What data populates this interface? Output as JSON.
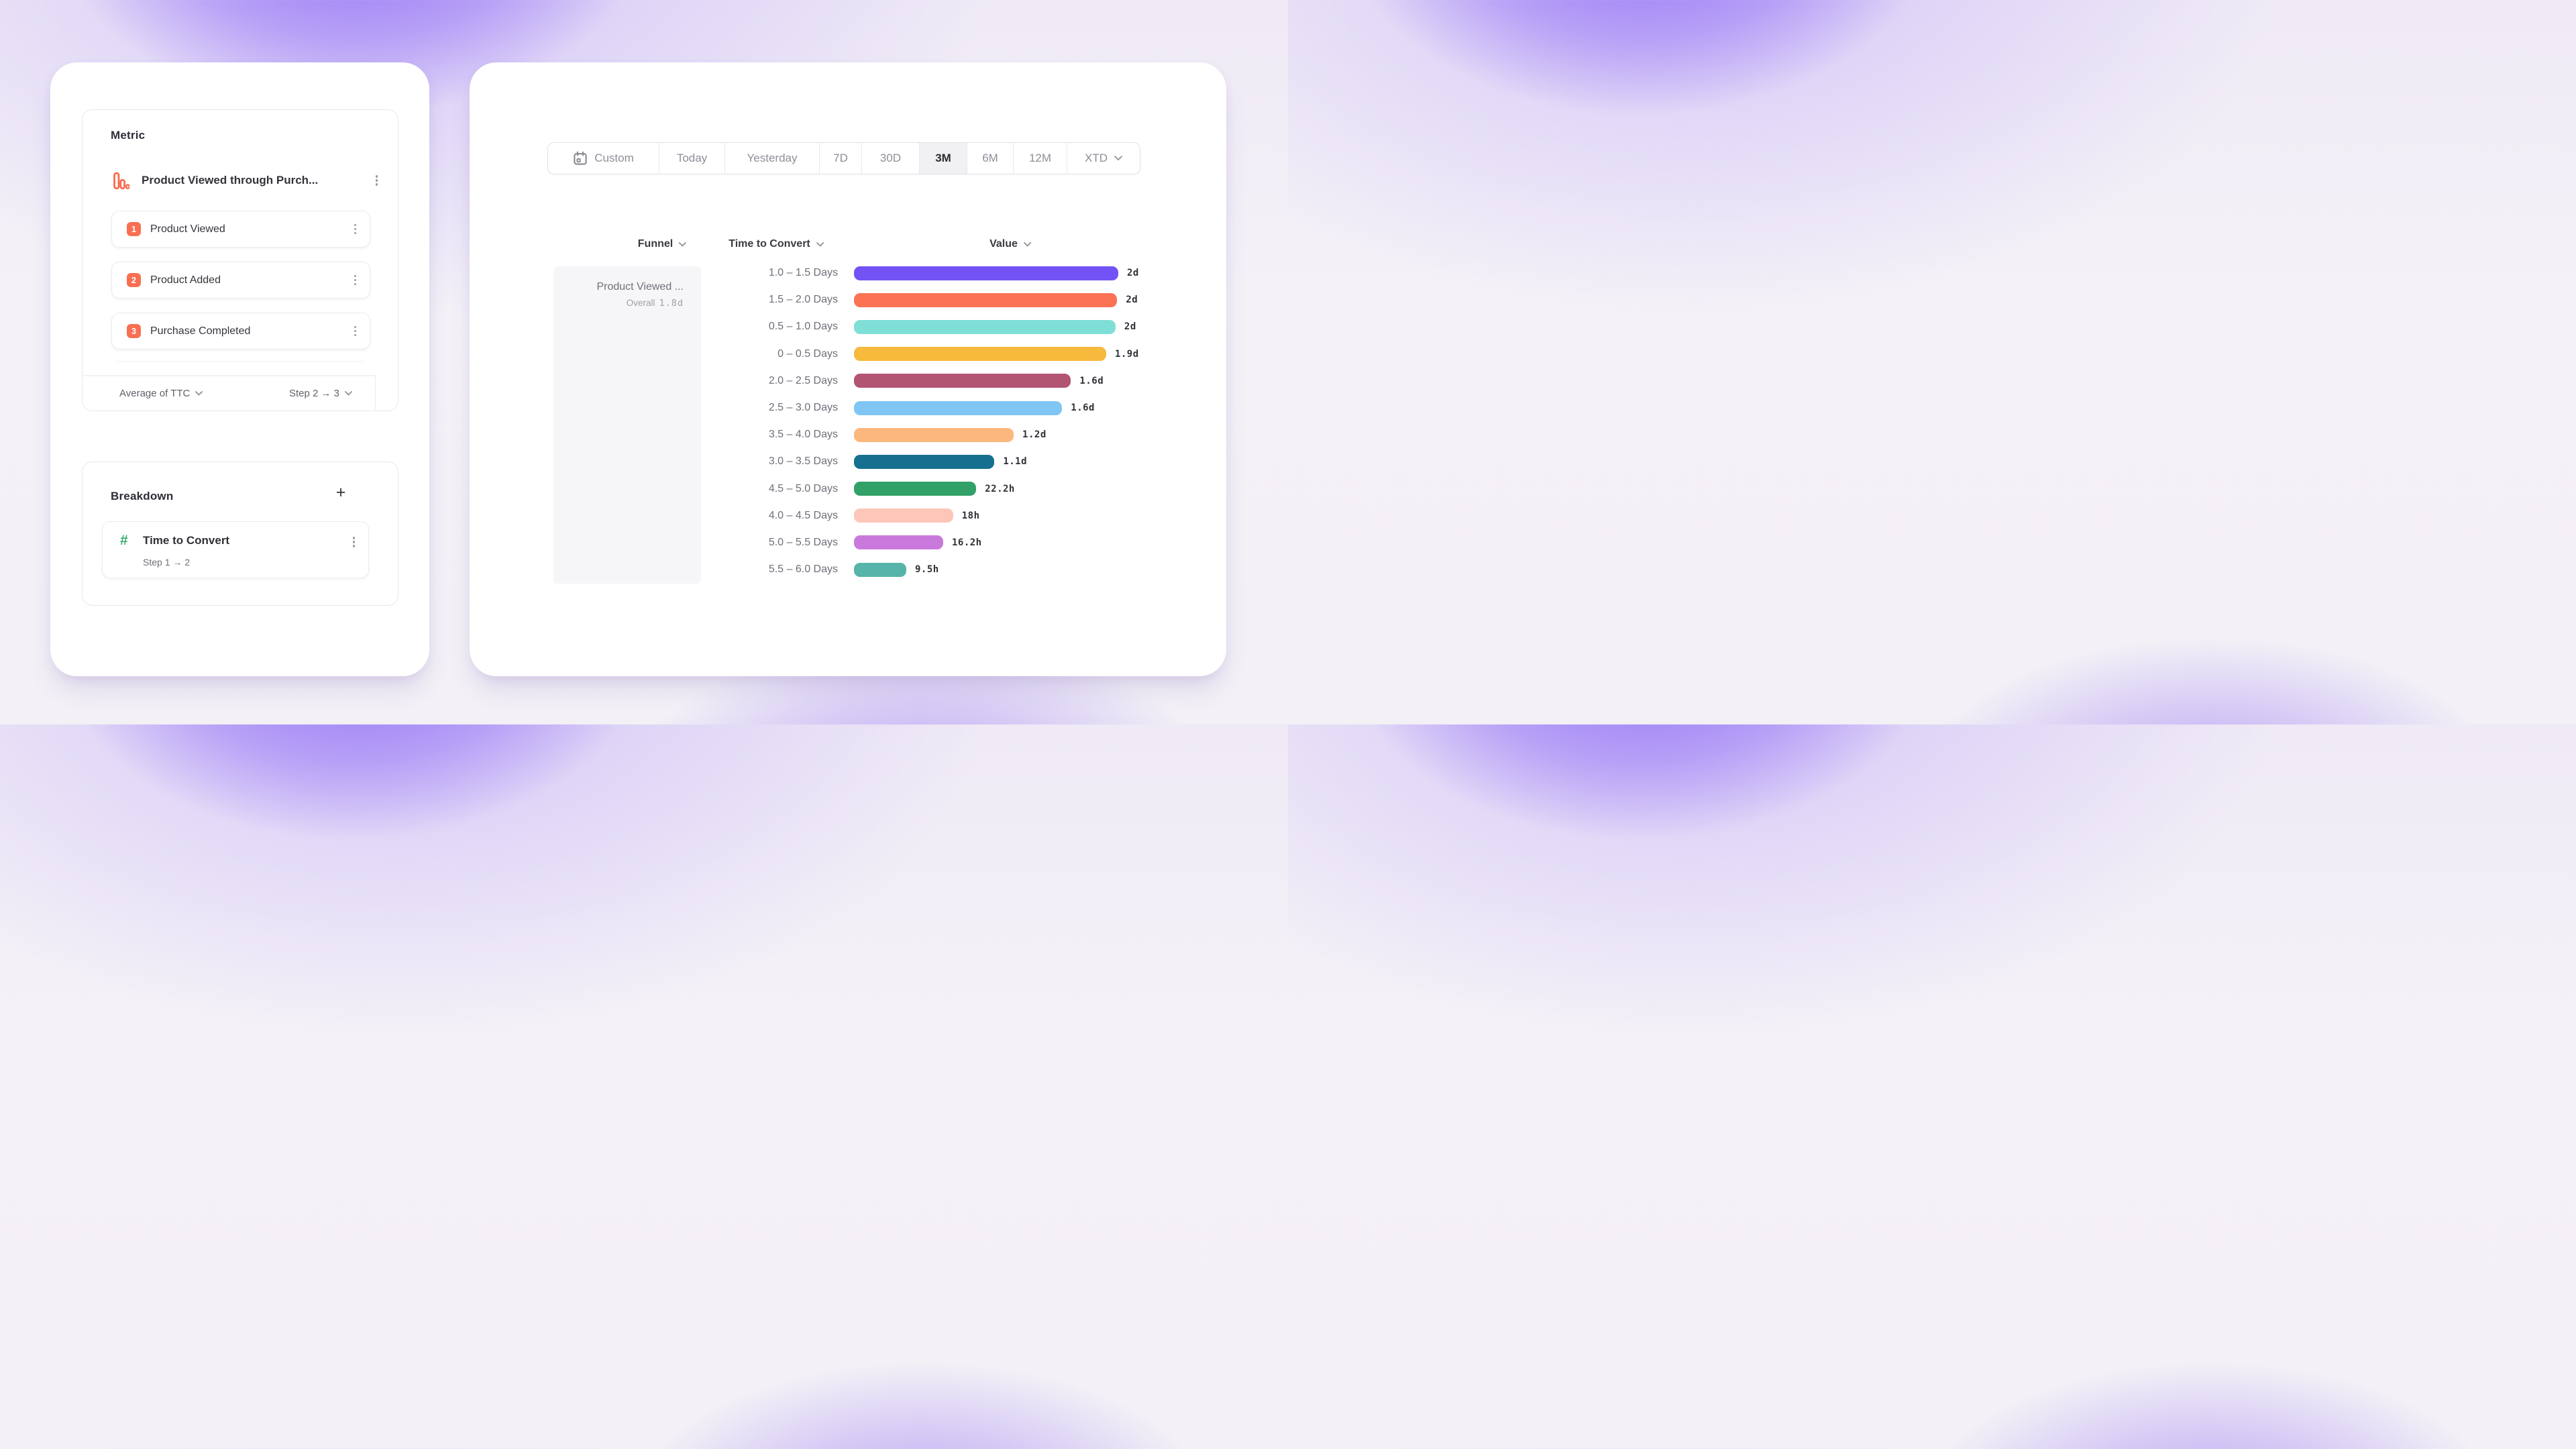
{
  "left_panel": {
    "metric": {
      "title": "Metric",
      "funnel": {
        "name": "Product Viewed through Purch...",
        "steps": [
          {
            "number": "1",
            "label": "Product Viewed"
          },
          {
            "number": "2",
            "label": "Product Added"
          },
          {
            "number": "3",
            "label": "Purchase Completed"
          }
        ],
        "measure_dropdown": "Average of TTC",
        "step_range_dropdown": "Step 2 → 3"
      }
    },
    "breakdown": {
      "title": "Breakdown",
      "add_button": "+",
      "item": {
        "label": "Time to Convert",
        "sublabel": "Step 1 → 2"
      }
    }
  },
  "right_panel": {
    "date_range": {
      "selected": "3M",
      "options": [
        "Custom",
        "Today",
        "Yesterday",
        "7D",
        "30D",
        "3M",
        "6M",
        "12M",
        "XTD"
      ]
    },
    "table": {
      "columns": [
        "Funnel",
        "Time to Convert",
        "Value"
      ],
      "funnel_cell": {
        "name": "Product Viewed ...",
        "overall_label": "Overall",
        "overall_value": "1.8d"
      }
    }
  },
  "colors": {
    "accent_coral": "#f96f52",
    "accent_green": "#38a76a",
    "glow_purple": "#8a67f3"
  },
  "chart_data": {
    "type": "bar",
    "orientation": "horizontal",
    "legend": "none",
    "grid": false,
    "xlabel": "Time to Convert",
    "ylabel": "Value",
    "max_hours": 48,
    "categories": [
      "1.0 – 1.5 Days",
      "1.5 – 2.0 Days",
      "0.5 – 1.0 Days",
      "0 – 0.5 Days",
      "2.0 – 2.5 Days",
      "2.5 – 3.0 Days",
      "3.5 – 4.0 Days",
      "3.0 – 3.5 Days",
      "4.5 – 5.0 Days",
      "4.0 – 4.5 Days",
      "5.0 – 5.5 Days",
      "5.5 – 6.0 Days"
    ],
    "values_display": [
      "2d",
      "2d",
      "2d",
      "1.9d",
      "1.6d",
      "1.6d",
      "1.2d",
      "1.1d",
      "22.2h",
      "18h",
      "16.2h",
      "9.5h"
    ],
    "values_hours": [
      48,
      47.8,
      47.5,
      45.8,
      39.4,
      37.8,
      29.0,
      25.5,
      22.2,
      18,
      16.2,
      9.5
    ],
    "bar_colors": [
      "#7353f5",
      "#fb7255",
      "#7fdfd6",
      "#f7ba3d",
      "#b25572",
      "#7fc6f4",
      "#fcb77e",
      "#14708e",
      "#31a167",
      "#fdc6b8",
      "#c979dc",
      "#57b4aa"
    ]
  }
}
